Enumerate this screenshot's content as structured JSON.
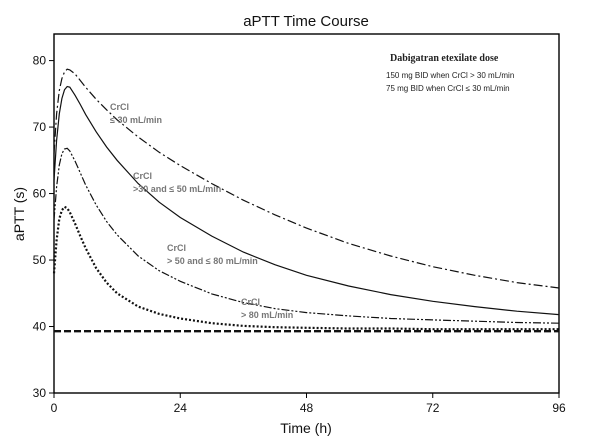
{
  "chart_data": {
    "type": "line",
    "title": "aPTT Time Course",
    "xlabel": "Time (h)",
    "ylabel": "aPTT (s)",
    "xlim": [
      0,
      96
    ],
    "ylim": [
      30,
      84
    ],
    "xticks": [
      0,
      24,
      48,
      72,
      96
    ],
    "yticks": [
      30,
      40,
      50,
      60,
      70,
      80
    ],
    "legend": {
      "title": "Dabigatran etexilate  dose",
      "lines": [
        "150 mg BID when CrCl > 30 mL/min",
        "75 mg BID when CrCl ≤ 30 mL/min"
      ]
    },
    "series": [
      {
        "style": "dash-dot",
        "label_lines": [
          "CrCl",
          "≤ 30 mL/min"
        ],
        "points": [
          [
            0,
            66
          ],
          [
            0.5,
            72
          ],
          [
            1,
            75.5
          ],
          [
            1.5,
            77.3
          ],
          [
            2,
            78.3
          ],
          [
            2.5,
            78.7
          ],
          [
            3,
            78.6
          ],
          [
            4,
            78
          ],
          [
            5,
            77
          ],
          [
            6,
            76
          ],
          [
            8,
            74.2
          ],
          [
            10,
            72.6
          ],
          [
            12,
            71.1
          ],
          [
            16,
            68.5
          ],
          [
            20,
            66.2
          ],
          [
            24,
            64.2
          ],
          [
            30,
            61.5
          ],
          [
            36,
            59
          ],
          [
            42,
            56.8
          ],
          [
            48,
            54.8
          ],
          [
            56,
            52.5
          ],
          [
            64,
            50.6
          ],
          [
            72,
            49
          ],
          [
            80,
            47.7
          ],
          [
            88,
            46.6
          ],
          [
            96,
            45.8
          ]
        ]
      },
      {
        "style": "solid",
        "label_lines": [
          "CrCl",
          ">30 and ≤ 50 mL/min"
        ],
        "points": [
          [
            0,
            62
          ],
          [
            0.5,
            68
          ],
          [
            1,
            72
          ],
          [
            1.5,
            74.3
          ],
          [
            2,
            75.6
          ],
          [
            2.5,
            76.1
          ],
          [
            3,
            76
          ],
          [
            4,
            74.8
          ],
          [
            5,
            73.4
          ],
          [
            6,
            71.9
          ],
          [
            8,
            69.3
          ],
          [
            10,
            67
          ],
          [
            12,
            65
          ],
          [
            16,
            61.5
          ],
          [
            20,
            58.7
          ],
          [
            24,
            56.4
          ],
          [
            30,
            53.6
          ],
          [
            36,
            51.2
          ],
          [
            42,
            49.3
          ],
          [
            48,
            47.7
          ],
          [
            56,
            46.1
          ],
          [
            64,
            44.8
          ],
          [
            72,
            43.8
          ],
          [
            80,
            43
          ],
          [
            88,
            42.3
          ],
          [
            96,
            41.8
          ]
        ]
      },
      {
        "style": "dash-dot-dot",
        "label_lines": [
          "CrCl",
          "> 50 and ≤ 80 mL/min"
        ],
        "points": [
          [
            0,
            56
          ],
          [
            0.5,
            61
          ],
          [
            1,
            64.3
          ],
          [
            1.5,
            66
          ],
          [
            2,
            66.7
          ],
          [
            2.5,
            66.8
          ],
          [
            3,
            66.4
          ],
          [
            4,
            64.9
          ],
          [
            5,
            63.1
          ],
          [
            6,
            61.3
          ],
          [
            8,
            58.3
          ],
          [
            10,
            55.8
          ],
          [
            12,
            53.8
          ],
          [
            16,
            50.6
          ],
          [
            20,
            48.4
          ],
          [
            24,
            46.8
          ],
          [
            30,
            44.9
          ],
          [
            36,
            43.6
          ],
          [
            42,
            42.7
          ],
          [
            48,
            42.1
          ],
          [
            56,
            41.6
          ],
          [
            64,
            41.2
          ],
          [
            72,
            41
          ],
          [
            80,
            40.8
          ],
          [
            88,
            40.6
          ],
          [
            96,
            40.5
          ]
        ]
      },
      {
        "style": "dotted",
        "label_lines": [
          "CrCl",
          "> 80 mL/min"
        ],
        "points": [
          [
            0,
            48
          ],
          [
            0.5,
            53
          ],
          [
            1,
            56.2
          ],
          [
            1.5,
            57.5
          ],
          [
            2,
            58
          ],
          [
            2.5,
            57.8
          ],
          [
            3,
            57.2
          ],
          [
            4,
            55.5
          ],
          [
            5,
            53.6
          ],
          [
            6,
            51.8
          ],
          [
            8,
            48.8
          ],
          [
            10,
            46.6
          ],
          [
            12,
            45
          ],
          [
            16,
            43
          ],
          [
            20,
            41.9
          ],
          [
            24,
            41.2
          ],
          [
            30,
            40.5
          ],
          [
            36,
            40.1
          ],
          [
            42,
            39.9
          ],
          [
            48,
            39.8
          ],
          [
            56,
            39.7
          ],
          [
            64,
            39.7
          ],
          [
            72,
            39.6
          ],
          [
            80,
            39.6
          ],
          [
            88,
            39.6
          ],
          [
            96,
            39.6
          ]
        ]
      },
      {
        "style": "dashed-bold",
        "points": [
          [
            0,
            39.3
          ],
          [
            96,
            39.3
          ]
        ]
      }
    ]
  }
}
